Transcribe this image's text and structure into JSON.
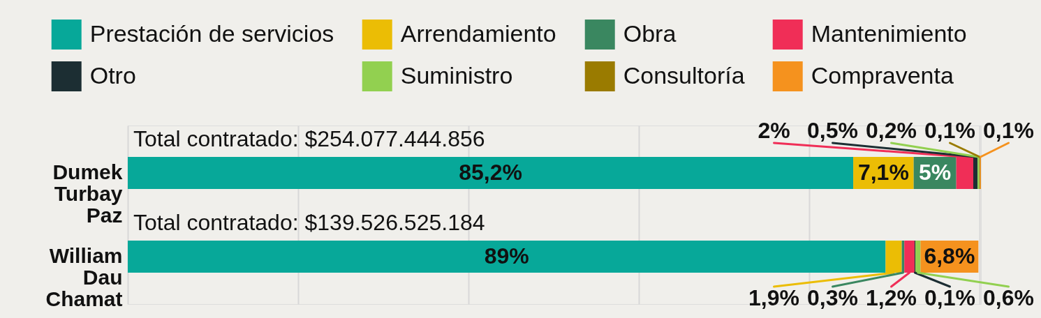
{
  "chart_data": {
    "type": "bar",
    "orientation": "horizontal",
    "stacked": true,
    "categories": [
      "Dumek Turbay Paz",
      "William Dau Chamat"
    ],
    "series": [
      {
        "name": "Prestación de servicios",
        "color": "#07a899",
        "values": [
          85.2,
          89
        ],
        "value_labels": [
          "85,2%",
          "89%"
        ]
      },
      {
        "name": "Arrendamiento",
        "color": "#ebbd05",
        "values": [
          7.1,
          1.9
        ],
        "value_labels": [
          "7,1%",
          "1,9%"
        ]
      },
      {
        "name": "Obra",
        "color": "#3a8760",
        "values": [
          5,
          0.3
        ],
        "value_labels": [
          "5%",
          "0,3%"
        ]
      },
      {
        "name": "Mantenimiento",
        "color": "#f02e57",
        "values": [
          2,
          1.2
        ],
        "value_labels": [
          "2%",
          "1,2%"
        ]
      },
      {
        "name": "Otro",
        "color": "#1c2e33",
        "values": [
          0.5,
          0.1
        ],
        "value_labels": [
          "0,5%",
          "0,1%"
        ]
      },
      {
        "name": "Suministro",
        "color": "#92d050",
        "values": [
          0.2,
          0.6
        ],
        "value_labels": [
          "0,2%",
          "0,6%"
        ]
      },
      {
        "name": "Consultoría",
        "color": "#9a7b00",
        "values": [
          0.1,
          null
        ],
        "value_labels": [
          "0,1%",
          null
        ]
      },
      {
        "name": "Compraventa",
        "color": "#f5921e",
        "values": [
          0.1,
          6.8
        ],
        "value_labels": [
          "0,1%",
          "6,8%"
        ]
      }
    ],
    "annotations": [
      "Total contratado: $254.077.444.856",
      "Total contratado: $139.526.525.184"
    ],
    "xlim": [
      0,
      100.2
    ],
    "xticks": [
      {
        "value": 0,
        "label": null
      },
      {
        "value": 20,
        "label": null
      },
      {
        "value": 40,
        "label": null
      },
      {
        "value": 60,
        "label": null
      },
      {
        "value": 80,
        "label": null
      },
      {
        "value": 100,
        "label": null
      }
    ],
    "grid": "x",
    "tick_labels": "y",
    "legend": "top"
  }
}
